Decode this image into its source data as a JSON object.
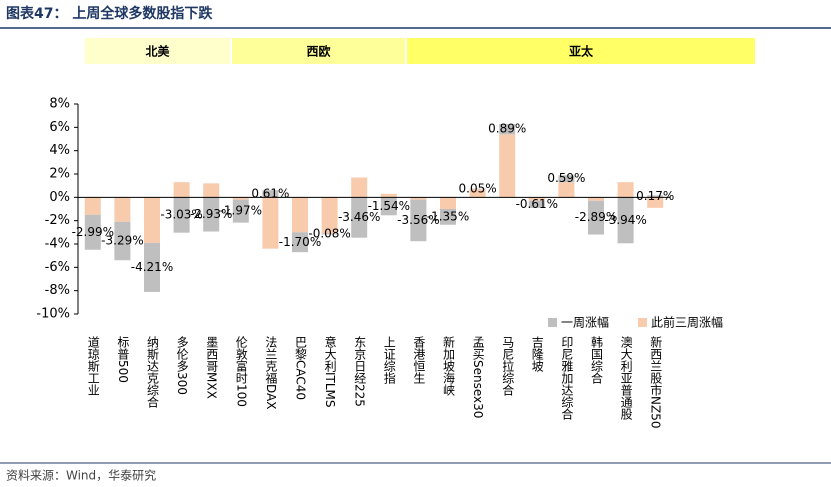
{
  "chart_data": {
    "type": "bar",
    "stacked": true,
    "title": "图表47：  上周全球多数股指下跌",
    "source": "资料来源：Wind，华泰研究",
    "region_labels": [
      "北美",
      "西欧",
      "亚太"
    ],
    "categories": [
      "道琼斯工业",
      "标普500",
      "纳斯达克综合",
      "多伦多300",
      "墨西哥MXX",
      "伦敦富时100",
      "法兰克福DAX",
      "巴黎CAC40",
      "意大利ITLMS",
      "东京日经225",
      "上证综指",
      "香港恒生",
      "新加坡海峡",
      "孟买Sensex30",
      "马尼拉综合",
      "吉隆坡",
      "印尼雅加达综合",
      "韩国综合",
      "澳大利亚普通股",
      "新西兰股市NZ50"
    ],
    "series": [
      {
        "name": "一周涨幅",
        "color": "#bfbfbf",
        "values": [
          -2.99,
          -3.29,
          -4.21,
          -3.03,
          -2.93,
          -1.97,
          0.61,
          -1.7,
          -0.08,
          -3.46,
          -1.54,
          -3.56,
          -1.35,
          0.05,
          0.89,
          -0.61,
          0.59,
          -2.89,
          -3.94,
          0.17
        ],
        "value_labels": [
          "-2.99%",
          "-3.29%",
          "-4.21%",
          "-3.03%",
          "-2.93%",
          "-1.97%",
          "0.61%",
          "-1.70%",
          "-0.08%",
          "-3.46%",
          "-1.54%",
          "-3.56%",
          "-1.35%",
          "0.05%",
          "0.89%",
          "-0.61%",
          "0.59%",
          "-2.89%",
          "-3.94%",
          "0.17%"
        ]
      },
      {
        "name": "此前三周涨幅",
        "color": "#f8cbad",
        "values": [
          -1.5,
          -2.1,
          -3.9,
          1.3,
          1.2,
          -0.2,
          -4.4,
          -3.0,
          -3.1,
          1.7,
          0.3,
          -0.2,
          -1.0,
          0.7,
          5.4,
          -0.3,
          1.3,
          -0.3,
          1.3,
          -0.9
        ]
      }
    ],
    "ylim": [
      -10,
      8
    ],
    "yticks": [
      {
        "value": -10,
        "label": "-10%"
      },
      {
        "value": -8,
        "label": "-8%"
      },
      {
        "value": -6,
        "label": "-6%"
      },
      {
        "value": -4,
        "label": "-4%"
      },
      {
        "value": -2,
        "label": "-2%"
      },
      {
        "value": 0,
        "label": "0%"
      },
      {
        "value": 2,
        "label": "2%"
      },
      {
        "value": 4,
        "label": "4%"
      },
      {
        "value": 6,
        "label": "6%"
      },
      {
        "value": 8,
        "label": "8%"
      }
    ]
  }
}
